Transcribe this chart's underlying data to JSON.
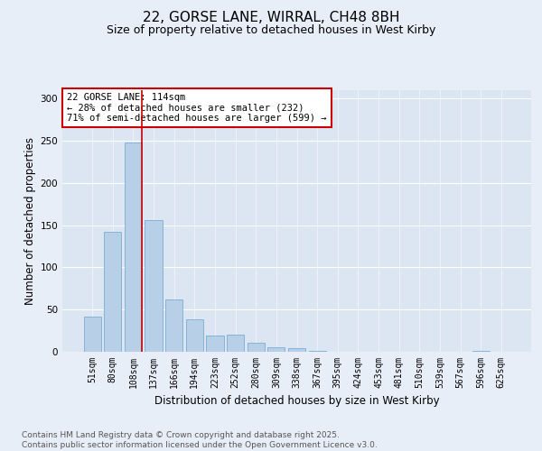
{
  "title": "22, GORSE LANE, WIRRAL, CH48 8BH",
  "subtitle": "Size of property relative to detached houses in West Kirby",
  "xlabel": "Distribution of detached houses by size in West Kirby",
  "ylabel": "Number of detached properties",
  "categories": [
    "51sqm",
    "80sqm",
    "108sqm",
    "137sqm",
    "166sqm",
    "194sqm",
    "223sqm",
    "252sqm",
    "280sqm",
    "309sqm",
    "338sqm",
    "367sqm",
    "395sqm",
    "424sqm",
    "453sqm",
    "481sqm",
    "510sqm",
    "539sqm",
    "567sqm",
    "596sqm",
    "625sqm"
  ],
  "values": [
    42,
    142,
    248,
    156,
    62,
    38,
    19,
    20,
    11,
    5,
    4,
    1,
    0,
    0,
    0,
    0,
    0,
    0,
    0,
    1,
    0
  ],
  "bar_color": "#b8cfe8",
  "bar_edge_color": "#7aadd4",
  "vline_x_index": 2,
  "vline_color": "#cc0000",
  "annotation_text": "22 GORSE LANE: 114sqm\n← 28% of detached houses are smaller (232)\n71% of semi-detached houses are larger (599) →",
  "annotation_box_color": "#cc0000",
  "footnote": "Contains HM Land Registry data © Crown copyright and database right 2025.\nContains public sector information licensed under the Open Government Licence v3.0.",
  "ylim": [
    0,
    310
  ],
  "yticks": [
    0,
    50,
    100,
    150,
    200,
    250,
    300
  ],
  "background_color": "#e8eef7",
  "plot_background_color": "#dce6f2",
  "title_fontsize": 11,
  "subtitle_fontsize": 9,
  "tick_fontsize": 7,
  "axis_label_fontsize": 8.5,
  "footnote_fontsize": 6.5
}
